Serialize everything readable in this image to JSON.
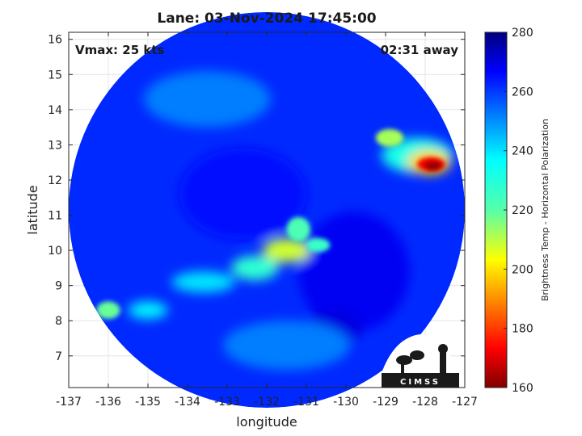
{
  "chart_data": {
    "type": "heatmap",
    "title": "Lane: 03-Nov-2024 17:45:00",
    "annotations": {
      "vmax": "Vmax: 25 kts",
      "age": "02:31 away"
    },
    "xlabel": "longitude",
    "ylabel": "latitude",
    "xlim": [
      -137,
      -127
    ],
    "ylim": [
      6.1,
      16.2
    ],
    "x_ticks": [
      -137,
      -136,
      -135,
      -134,
      -133,
      -132,
      -131,
      -130,
      -129,
      -128,
      -127
    ],
    "x_tick_labels": [
      "-137",
      "-136",
      "-135",
      "-134",
      "-133",
      "-132",
      "-131",
      "-130",
      "-129",
      "-128",
      "-127"
    ],
    "y_ticks": [
      7,
      8,
      9,
      10,
      11,
      12,
      13,
      14,
      15,
      16
    ],
    "y_tick_labels": [
      "7",
      "8",
      "9",
      "10",
      "11",
      "12",
      "13",
      "14",
      "15",
      "16"
    ],
    "grid": true,
    "colorbar": {
      "label": "Brightness Temp - Horizontal Polarization",
      "range": [
        160,
        280
      ],
      "ticks": [
        160,
        180,
        200,
        220,
        240,
        260,
        280
      ],
      "tick_labels": [
        "160",
        "180",
        "200",
        "220",
        "240",
        "260",
        "280"
      ],
      "colormap": "jet"
    },
    "swath": {
      "center_lon": -132.0,
      "center_lat": 11.15,
      "radius_deg": 5.0,
      "background_value": 262
    },
    "features": [
      {
        "name": "deep background east",
        "lon": -129.8,
        "lat": 9.4,
        "rx": 1.4,
        "ry": 1.7,
        "value": 268
      },
      {
        "name": "deep background center",
        "lon": -132.6,
        "lat": 11.6,
        "rx": 1.6,
        "ry": 1.3,
        "value": 266
      },
      {
        "name": "dark blob southeast",
        "lon": -130.3,
        "lat": 7.8,
        "rx": 0.7,
        "ry": 0.5,
        "value": 270
      },
      {
        "name": "lighter area south",
        "lon": -131.5,
        "lat": 7.3,
        "rx": 1.6,
        "ry": 0.7,
        "value": 252
      },
      {
        "name": "lighter area north",
        "lon": -133.5,
        "lat": 14.3,
        "rx": 1.6,
        "ry": 0.8,
        "value": 252
      },
      {
        "name": "band west end",
        "lon": -136.0,
        "lat": 8.3,
        "rx": 0.3,
        "ry": 0.25,
        "value": 218
      },
      {
        "name": "band west",
        "lon": -135.0,
        "lat": 8.3,
        "rx": 0.5,
        "ry": 0.25,
        "value": 238
      },
      {
        "name": "band middle",
        "lon": -133.6,
        "lat": 9.1,
        "rx": 0.8,
        "ry": 0.3,
        "value": 240
      },
      {
        "name": "band east",
        "lon": -132.3,
        "lat": 9.5,
        "rx": 0.6,
        "ry": 0.35,
        "value": 228
      },
      {
        "name": "convection core",
        "lon": -131.5,
        "lat": 10.0,
        "rx": 0.6,
        "ry": 0.35,
        "value": 208
      },
      {
        "name": "convection north lobe",
        "lon": -131.2,
        "lat": 10.6,
        "rx": 0.3,
        "ry": 0.35,
        "value": 222
      },
      {
        "name": "convection east tail",
        "lon": -130.7,
        "lat": 10.15,
        "rx": 0.3,
        "ry": 0.2,
        "value": 226
      },
      {
        "name": "northeast outer cloud",
        "lon": -128.2,
        "lat": 12.7,
        "rx": 0.9,
        "ry": 0.5,
        "value": 232
      },
      {
        "name": "northeast cell",
        "lon": -128.9,
        "lat": 13.2,
        "rx": 0.35,
        "ry": 0.25,
        "value": 212
      },
      {
        "name": "northeast warm core",
        "lon": -127.9,
        "lat": 12.5,
        "rx": 0.55,
        "ry": 0.35,
        "value": 198
      },
      {
        "name": "northeast cold core",
        "lon": -127.85,
        "lat": 12.45,
        "rx": 0.35,
        "ry": 0.2,
        "value": 172
      },
      {
        "name": "northeast coldest",
        "lon": -127.8,
        "lat": 12.4,
        "rx": 0.2,
        "ry": 0.12,
        "value": 162
      }
    ]
  },
  "logo": {
    "text": "CIMSS"
  }
}
